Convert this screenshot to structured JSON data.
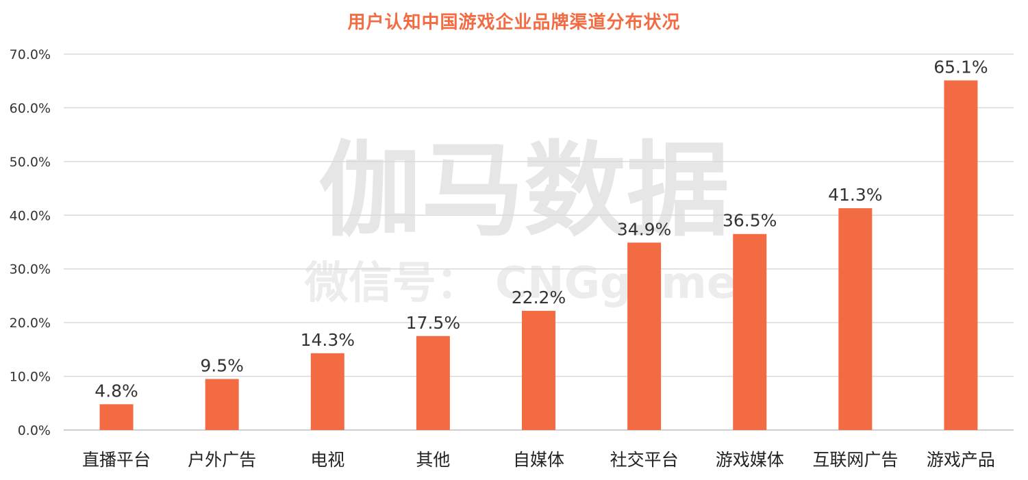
{
  "chart_data": {
    "type": "bar",
    "title": "用户认知中国游戏企业品牌渠道分布状况",
    "categories": [
      "直播平台",
      "户外广告",
      "电视",
      "其他",
      "自媒体",
      "社交平台",
      "游戏媒体",
      "互联网广告",
      "游戏产品"
    ],
    "values": [
      4.8,
      9.5,
      14.3,
      17.5,
      22.2,
      34.9,
      36.5,
      41.3,
      65.1
    ],
    "data_labels": [
      "4.8%",
      "9.5%",
      "14.3%",
      "17.5%",
      "22.2%",
      "34.9%",
      "36.5%",
      "41.3%",
      "65.1%"
    ],
    "ylim": [
      0,
      70
    ],
    "yticks": [
      "0.0%",
      "10.0%",
      "20.0%",
      "30.0%",
      "40.0%",
      "50.0%",
      "60.0%",
      "70.0%"
    ],
    "xlabel": "",
    "ylabel": "",
    "grid": true,
    "bar_color": "#f26b43",
    "title_color": "#f26b43"
  },
  "watermark": {
    "main": "伽马数据",
    "sub": "微信号： CNGgame"
  }
}
